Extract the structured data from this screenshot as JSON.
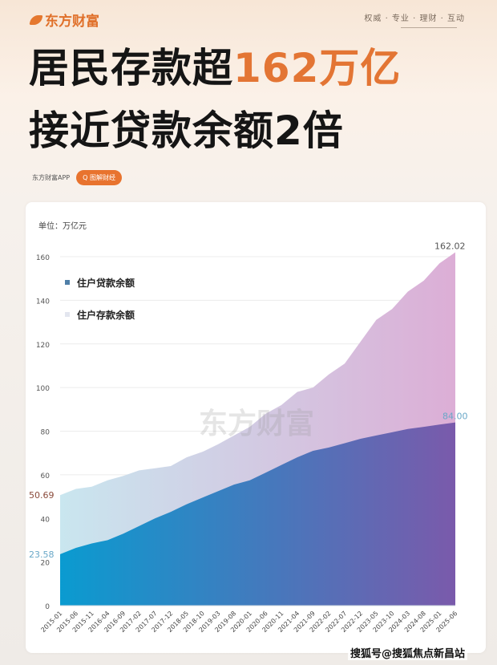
{
  "header": {
    "brand": "东方财富",
    "slogan": "权威 · 专业 · 理财 · 互动",
    "title_line1_a": "居民存款超",
    "title_line1_b": "162万亿",
    "title_line2": "接近贷款余额2倍",
    "source_label": "东方财富APP",
    "source_tag": "Q 图解财经"
  },
  "colors": {
    "accent": "#e37534",
    "deposit_start": "#c9e6ef",
    "deposit_end": "#dcaed6",
    "loan_start": "#0a9bd0",
    "loan_end": "#7a5aab"
  },
  "chart_data": {
    "type": "area",
    "unit_label": "单位：万亿元",
    "watermark": "东方财富",
    "categories": [
      "2015-01",
      "2015-06",
      "2015-11",
      "2016-04",
      "2016-09",
      "2017-02",
      "2017-07",
      "2017-12",
      "2018-05",
      "2018-10",
      "2019-03",
      "2019-08",
      "2020-01",
      "2020-06",
      "2020-11",
      "2021-04",
      "2021-09",
      "2022-02",
      "2022-07",
      "2022-12",
      "2023-05",
      "2023-10",
      "2024-03",
      "2024-08",
      "2025-01",
      "2025-06"
    ],
    "ylim": [
      0,
      160
    ],
    "yticks": [
      0,
      20,
      40,
      60,
      80,
      100,
      120,
      140,
      160
    ],
    "grid": true,
    "legend_placement": "top-left",
    "series": [
      {
        "name": "住户存款余额",
        "values": [
          50.69,
          53.5,
          54.5,
          57.5,
          59.5,
          62,
          63,
          64,
          68,
          70.5,
          74,
          78,
          82,
          88,
          92,
          98,
          100,
          106,
          111,
          121,
          131,
          136,
          144,
          149,
          157,
          162.02
        ],
        "start_label": "50.69",
        "end_label": "162.02"
      },
      {
        "name": "住户贷款余额",
        "values": [
          23.58,
          26.5,
          28.5,
          30,
          33,
          36.5,
          40,
          43,
          46.5,
          49.5,
          52.5,
          55.5,
          57.5,
          61,
          64.5,
          68,
          71,
          72.5,
          74.5,
          76.5,
          78,
          79.5,
          81,
          82,
          83,
          84.0
        ],
        "start_label": "23.58",
        "end_label": "84.00"
      }
    ]
  },
  "footer": {
    "watermark": "搜狐号@搜狐焦点新昌站"
  }
}
